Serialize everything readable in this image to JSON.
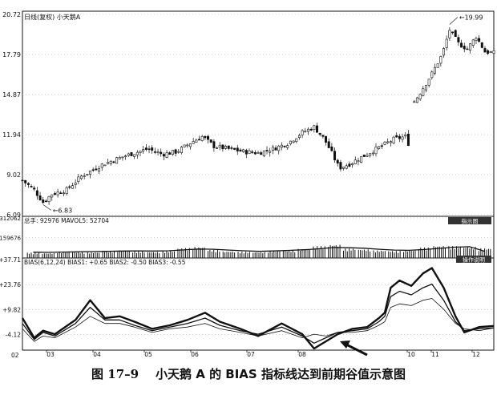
{
  "price_panel": {
    "title": "日线(复权)  小天鹅A",
    "y_ticks": [
      "20.72",
      "17.79",
      "14.87",
      "11.94",
      "9.02",
      "6.09"
    ],
    "high_label": "19.99",
    "low_label": "6.83"
  },
  "volume_panel": {
    "legend": "总手: 92976  MAVOL5: 52704",
    "button": "指示图",
    "y_ticks": [
      "312062",
      "159676"
    ]
  },
  "bias_panel": {
    "legend": "BIAS(6,12,24)  BIAS1: +0.65  BIAS2: -0.50  BIAS3: -0.55",
    "button": "操作说明",
    "y_ticks": [
      "+37.71",
      "+23.76",
      "+9.82",
      "-4.12"
    ],
    "bottom_left": "02"
  },
  "x_axis": {
    "ticks": [
      "03",
      "04",
      "05",
      "06",
      "07",
      "08",
      "10",
      "11",
      "12"
    ]
  },
  "caption": {
    "figure_no": "图 17–9",
    "text": "小天鹅 A 的 BIAS 指标线达到前期谷值示意图"
  },
  "colors": {
    "ink": "#111111",
    "grid": "#b0b0b0",
    "button_bg": "#333333",
    "button_fg": "#ffffff"
  },
  "chart_data": [
    {
      "type": "candlestick",
      "ylim": [
        6.09,
        20.72
      ],
      "x_ticks": [
        "03",
        "04",
        "05",
        "06",
        "07",
        "08",
        "10",
        "11",
        "12"
      ],
      "close_path": [
        [
          0,
          8.6
        ],
        [
          8,
          7.9
        ],
        [
          14,
          7.0
        ],
        [
          20,
          7.6
        ],
        [
          30,
          7.9
        ],
        [
          40,
          8.9
        ],
        [
          55,
          9.8
        ],
        [
          70,
          10.4
        ],
        [
          85,
          10.9
        ],
        [
          95,
          10.5
        ],
        [
          105,
          10.7
        ],
        [
          115,
          11.4
        ],
        [
          122,
          11.8
        ],
        [
          130,
          11.1
        ],
        [
          140,
          10.9
        ],
        [
          150,
          10.7
        ],
        [
          160,
          10.6
        ],
        [
          170,
          10.9
        ],
        [
          180,
          11.3
        ],
        [
          190,
          12.1
        ],
        [
          198,
          12.5
        ],
        [
          205,
          11.6
        ],
        [
          210,
          10.6
        ],
        [
          215,
          9.5
        ],
        [
          222,
          9.8
        ],
        [
          232,
          10.4
        ],
        [
          242,
          11.0
        ],
        [
          252,
          11.6
        ],
        [
          260,
          11.8
        ],
        [
          262,
          11.3
        ],
        [
          265,
          14.2
        ],
        [
          270,
          15.0
        ],
        [
          278,
          16.4
        ],
        [
          285,
          17.8
        ],
        [
          290,
          19.6
        ],
        [
          296,
          18.6
        ],
        [
          302,
          18.2
        ],
        [
          308,
          19.1
        ],
        [
          314,
          18.0
        ],
        [
          320,
          17.9
        ]
      ],
      "gap": [
        263,
        264
      ],
      "annotations": [
        {
          "label": "19.99",
          "x": 290,
          "y": 19.99
        },
        {
          "label": "6.83",
          "x": 14,
          "y": 6.83
        }
      ]
    },
    {
      "type": "bar",
      "title": "volume",
      "ylim": [
        0,
        312062
      ],
      "y_ticks": [
        312062,
        159676
      ],
      "series": [
        {
          "name": "总手",
          "values": [
            42000,
            38000,
            51000,
            47000,
            45000,
            56000,
            61000,
            52000,
            48000,
            55000,
            78000,
            86000,
            64000,
            52000,
            49000,
            46000,
            58000,
            62000,
            71000,
            93000,
            105000,
            74000,
            68000,
            59000,
            55000,
            61000,
            82000,
            96000,
            92976,
            88000,
            76000
          ]
        },
        {
          "name": "MAVOL5",
          "values": [
            45000,
            44000,
            46000,
            48000,
            50000,
            52000,
            54000,
            55000,
            54000,
            56000,
            63000,
            70000,
            68000,
            62000,
            56000,
            52000,
            55000,
            59000,
            64000,
            72000,
            82000,
            80000,
            76000,
            68000,
            62000,
            60000,
            66000,
            75000,
            84000,
            88000,
            52704
          ]
        }
      ]
    },
    {
      "type": "line",
      "title": "BIAS(6,12,24)",
      "ylim": [
        -12,
        37.71
      ],
      "y_ticks": [
        37.71,
        23.76,
        9.82,
        -4.12
      ],
      "series": [
        {
          "name": "BIAS1",
          "points": [
            [
              0,
              5
            ],
            [
              8,
              -6
            ],
            [
              14,
              -2
            ],
            [
              22,
              -4
            ],
            [
              36,
              4
            ],
            [
              46,
              15
            ],
            [
              56,
              5
            ],
            [
              66,
              6
            ],
            [
              76,
              3
            ],
            [
              88,
              -1
            ],
            [
              100,
              1
            ],
            [
              112,
              4
            ],
            [
              124,
              8
            ],
            [
              134,
              3
            ],
            [
              148,
              -1
            ],
            [
              160,
              -5
            ],
            [
              176,
              2
            ],
            [
              190,
              -4
            ],
            [
              198,
              -12
            ],
            [
              206,
              -8
            ],
            [
              214,
              -4
            ],
            [
              224,
              -1
            ],
            [
              234,
              0
            ],
            [
              242,
              5
            ],
            [
              246,
              8
            ],
            [
              250,
              22
            ],
            [
              256,
              26
            ],
            [
              264,
              23
            ],
            [
              272,
              30
            ],
            [
              278,
              33
            ],
            [
              286,
              22
            ],
            [
              294,
              6
            ],
            [
              300,
              -3
            ],
            [
              310,
              0
            ],
            [
              320,
              0.65
            ]
          ]
        },
        {
          "name": "BIAS2",
          "points": [
            [
              0,
              2
            ],
            [
              8,
              -7
            ],
            [
              14,
              -3
            ],
            [
              22,
              -5
            ],
            [
              36,
              2
            ],
            [
              46,
              11
            ],
            [
              56,
              4
            ],
            [
              66,
              4
            ],
            [
              76,
              1
            ],
            [
              88,
              -2
            ],
            [
              100,
              0
            ],
            [
              112,
              2
            ],
            [
              124,
              5
            ],
            [
              134,
              1
            ],
            [
              148,
              -2
            ],
            [
              160,
              -4
            ],
            [
              176,
              0
            ],
            [
              190,
              -5
            ],
            [
              198,
              -9
            ],
            [
              206,
              -6
            ],
            [
              214,
              -3
            ],
            [
              224,
              -2
            ],
            [
              234,
              -1
            ],
            [
              242,
              3
            ],
            [
              246,
              6
            ],
            [
              250,
              17
            ],
            [
              256,
              20
            ],
            [
              264,
              18
            ],
            [
              272,
              22
            ],
            [
              278,
              24
            ],
            [
              286,
              15
            ],
            [
              294,
              3
            ],
            [
              300,
              -2
            ],
            [
              310,
              -1
            ],
            [
              320,
              -0.5
            ]
          ]
        },
        {
          "name": "BIAS3",
          "points": [
            [
              0,
              -1
            ],
            [
              8,
              -8
            ],
            [
              14,
              -5
            ],
            [
              22,
              -6
            ],
            [
              36,
              0
            ],
            [
              46,
              6
            ],
            [
              56,
              2
            ],
            [
              66,
              2
            ],
            [
              76,
              0
            ],
            [
              88,
              -3
            ],
            [
              100,
              -1
            ],
            [
              112,
              0
            ],
            [
              124,
              2
            ],
            [
              134,
              -1
            ],
            [
              148,
              -3
            ],
            [
              160,
              -5
            ],
            [
              176,
              -2
            ],
            [
              190,
              -6
            ],
            [
              198,
              -4
            ],
            [
              206,
              -5
            ],
            [
              214,
              -3
            ],
            [
              224,
              -3
            ],
            [
              234,
              -2
            ],
            [
              242,
              1
            ],
            [
              246,
              3
            ],
            [
              250,
              11
            ],
            [
              256,
              13
            ],
            [
              264,
              12
            ],
            [
              272,
              15
            ],
            [
              278,
              16
            ],
            [
              286,
              10
            ],
            [
              294,
              2
            ],
            [
              300,
              -1
            ],
            [
              310,
              -2
            ],
            [
              320,
              -0.55
            ]
          ]
        }
      ]
    }
  ]
}
